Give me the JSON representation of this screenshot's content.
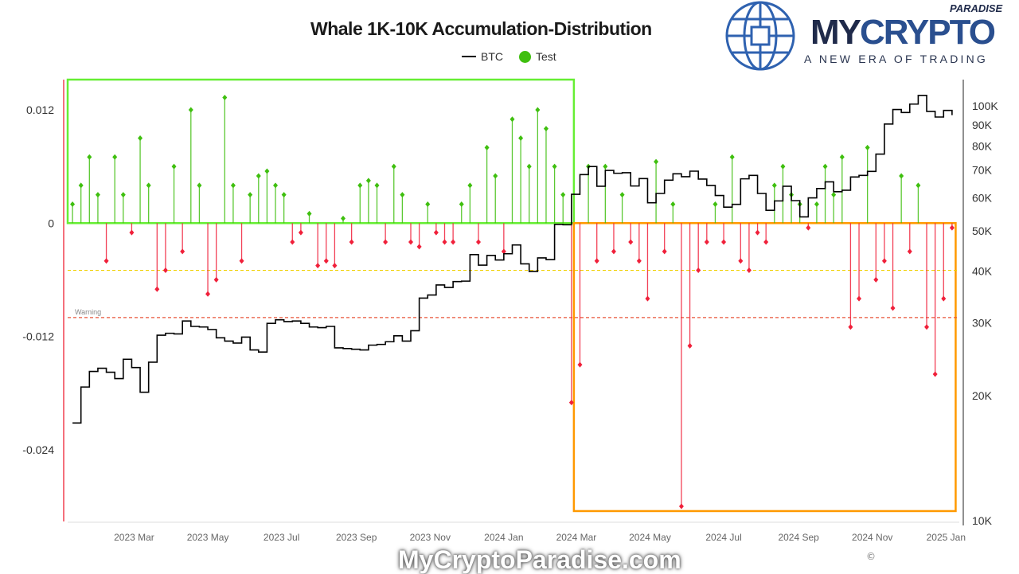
{
  "chart_data": {
    "type": "bar+line",
    "title": "Whale 1K-10K Accumulation-Distribution",
    "legend": {
      "placement": "top-center",
      "entries": [
        {
          "name": "BTC",
          "color": "#000000",
          "marker": "line"
        },
        {
          "name": "Test",
          "color": "#3fbf0f",
          "marker": "dot"
        }
      ]
    },
    "x_ticks": [
      "2023 Mar",
      "2023 May",
      "2023 Jul",
      "2023 Sep",
      "2023 Nov",
      "2024 Jan",
      "2024 Mar",
      "2024 May",
      "2024 Jul",
      "2024 Sep",
      "2024 Nov",
      "2025 Jan"
    ],
    "x_tick_dates": [
      "2023-03-01",
      "2023-05-01",
      "2023-07-01",
      "2023-09-01",
      "2023-11-01",
      "2024-01-01",
      "2024-03-01",
      "2024-05-01",
      "2024-07-01",
      "2024-09-01",
      "2024-11-01",
      "2025-01-01"
    ],
    "x_range": [
      "2023-01-05",
      "2025-01-12"
    ],
    "y_left": {
      "ticks": [
        "0.012",
        "0",
        "-0.012",
        "-0.024"
      ],
      "tick_values": [
        0.012,
        0,
        -0.012,
        -0.024
      ],
      "range": [
        -0.0316,
        0.0152
      ]
    },
    "y_right": {
      "scale": "log",
      "ticks": [
        "100K",
        "90K",
        "80K",
        "70K",
        "60K",
        "50K",
        "40K",
        "30K",
        "20K",
        "10K"
      ],
      "tick_values": [
        100000,
        90000,
        80000,
        70000,
        60000,
        50000,
        40000,
        30000,
        20000,
        10000
      ],
      "range": [
        10000,
        130000
      ]
    },
    "reference_lines": [
      {
        "label": "",
        "value": -0.005,
        "color": "#f0d000",
        "style": "dashed"
      },
      {
        "label": "Warning",
        "value": -0.01,
        "color": "#e8553a",
        "style": "dashed"
      }
    ],
    "highlight_boxes": [
      {
        "from": "2023-01-05",
        "to": "2024-02-28",
        "y": [
          0,
          0.0152
        ],
        "color": "#66ee33"
      },
      {
        "from": "2024-02-28",
        "to": "2025-01-09",
        "y": [
          -0.0305,
          0
        ],
        "color": "#ff9900"
      }
    ],
    "colors": {
      "positive": "#3fbf0f",
      "negative": "#f0203a",
      "btc": "#000000"
    },
    "dates": [
      "2023-01-09",
      "2023-01-16",
      "2023-01-23",
      "2023-01-30",
      "2023-02-06",
      "2023-02-13",
      "2023-02-20",
      "2023-02-27",
      "2023-03-06",
      "2023-03-13",
      "2023-03-20",
      "2023-03-27",
      "2023-04-03",
      "2023-04-10",
      "2023-04-17",
      "2023-04-24",
      "2023-05-01",
      "2023-05-08",
      "2023-05-15",
      "2023-05-22",
      "2023-05-29",
      "2023-06-05",
      "2023-06-12",
      "2023-06-19",
      "2023-06-26",
      "2023-07-03",
      "2023-07-10",
      "2023-07-17",
      "2023-07-24",
      "2023-07-31",
      "2023-08-07",
      "2023-08-14",
      "2023-08-21",
      "2023-08-28",
      "2023-09-04",
      "2023-09-11",
      "2023-09-18",
      "2023-09-25",
      "2023-10-02",
      "2023-10-09",
      "2023-10-16",
      "2023-10-23",
      "2023-10-30",
      "2023-11-06",
      "2023-11-13",
      "2023-11-20",
      "2023-11-27",
      "2023-12-04",
      "2023-12-11",
      "2023-12-18",
      "2023-12-25",
      "2024-01-01",
      "2024-01-08",
      "2024-01-15",
      "2024-01-22",
      "2024-01-29",
      "2024-02-05",
      "2024-02-12",
      "2024-02-19",
      "2024-02-26",
      "2024-03-04",
      "2024-03-11",
      "2024-03-18",
      "2024-03-25",
      "2024-04-01",
      "2024-04-08",
      "2024-04-15",
      "2024-04-22",
      "2024-04-29",
      "2024-05-06",
      "2024-05-13",
      "2024-05-20",
      "2024-05-27",
      "2024-06-03",
      "2024-06-10",
      "2024-06-17",
      "2024-06-24",
      "2024-07-01",
      "2024-07-08",
      "2024-07-15",
      "2024-07-22",
      "2024-07-29",
      "2024-08-05",
      "2024-08-12",
      "2024-08-19",
      "2024-08-26",
      "2024-09-02",
      "2024-09-09",
      "2024-09-16",
      "2024-09-23",
      "2024-09-30",
      "2024-10-07",
      "2024-10-14",
      "2024-10-21",
      "2024-10-28",
      "2024-11-04",
      "2024-11-11",
      "2024-11-18",
      "2024-11-25",
      "2024-12-02",
      "2024-12-09",
      "2024-12-16",
      "2024-12-23",
      "2024-12-30",
      "2025-01-06"
    ],
    "series": [
      {
        "name": "BTC",
        "axis": "right",
        "type": "line",
        "values": [
          17200,
          21000,
          22900,
          23300,
          22800,
          22000,
          24500,
          23400,
          20400,
          24100,
          28000,
          28300,
          28200,
          30300,
          29400,
          29300,
          28900,
          27600,
          27100,
          26800,
          27700,
          25800,
          25500,
          29900,
          30500,
          30200,
          30300,
          29900,
          29300,
          29200,
          29400,
          26100,
          26000,
          25900,
          25800,
          26500,
          26600,
          27000,
          27900,
          27100,
          28700,
          34400,
          35000,
          37000,
          36500,
          37700,
          37800,
          43800,
          41300,
          43600,
          42500,
          44000,
          46200,
          41600,
          39900,
          43000,
          42600,
          51800,
          51700,
          61200,
          68300,
          71400,
          64000,
          69900,
          68800,
          69000,
          64100,
          66800,
          58400,
          61500,
          66200,
          68600,
          67500,
          69600,
          66600,
          64300,
          60800,
          57000,
          57900,
          66700,
          68000,
          61500,
          56000,
          59000,
          64000,
          59100,
          54000,
          60000,
          63200,
          65600,
          62100,
          62600,
          67400,
          68000,
          69500,
          76500,
          90400,
          98000,
          96400,
          101000,
          106000,
          97000,
          94000,
          97500,
          95000
        ]
      },
      {
        "name": "Test",
        "axis": "left",
        "type": "bar",
        "values": [
          0.002,
          0.004,
          0.007,
          0.003,
          -0.004,
          0.007,
          0.003,
          -0.001,
          0.009,
          0.004,
          -0.007,
          -0.005,
          0.006,
          -0.003,
          0.012,
          0.004,
          -0.0075,
          -0.006,
          0.0133,
          0.004,
          -0.004,
          0.003,
          0.005,
          0.0055,
          0.004,
          0.003,
          -0.002,
          -0.001,
          0.001,
          -0.0045,
          -0.004,
          -0.0045,
          0.0005,
          -0.002,
          0.004,
          0.0045,
          0.004,
          -0.002,
          0.006,
          0.003,
          -0.002,
          -0.0025,
          0.002,
          -0.001,
          -0.002,
          -0.002,
          0.002,
          0.004,
          -0.002,
          0.008,
          0.005,
          -0.003,
          0.011,
          0.009,
          0.006,
          0.012,
          0.01,
          0.006,
          0.003,
          -0.019,
          -0.015,
          0.006,
          -0.004,
          0.006,
          -0.003,
          0.003,
          -0.002,
          -0.004,
          -0.008,
          0.0065,
          -0.003,
          0.002,
          -0.03,
          -0.013,
          -0.005,
          -0.002,
          0.002,
          -0.002,
          0.007,
          -0.004,
          -0.005,
          -0.001,
          -0.002,
          0.004,
          0.006,
          0.003,
          0.002,
          -0.0005,
          0.002,
          0.006,
          0.003,
          0.007,
          -0.011,
          -0.008,
          0.008,
          -0.006,
          -0.004,
          -0.009,
          0.005,
          -0.003,
          0.004,
          -0.011,
          -0.016,
          -0.008,
          -0.0005
        ]
      }
    ]
  },
  "branding": {
    "logo_paradise": "PARADISE",
    "logo_my": "MY",
    "logo_crypto": "CRYPTO",
    "logo_tagline": "A NEW ERA OF TRADING",
    "watermark": "MyCryptoParadise.com",
    "copyright": "©"
  }
}
